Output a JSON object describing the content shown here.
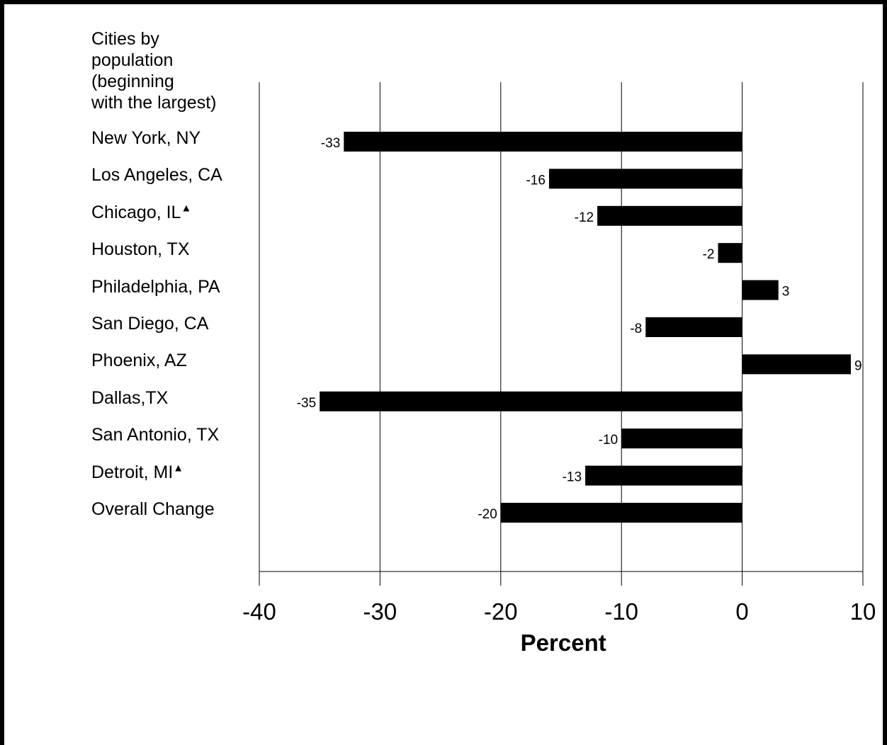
{
  "chart_data": {
    "type": "bar",
    "orientation": "horizontal",
    "y_title": "Cities by\npopulation\n(beginning\nwith the largest)",
    "xlabel": "Percent",
    "xlim": [
      -40,
      10
    ],
    "xticks": [
      "-40",
      "-30",
      "-20",
      "-10",
      "0",
      "10"
    ],
    "grid": true,
    "categories": [
      "New York, NY",
      "Los Angeles, CA",
      "Chicago, IL",
      "Houston, TX",
      "Philadelphia, PA",
      "San Diego, CA",
      "Phoenix, AZ",
      "Dallas,TX",
      "San Antonio, TX",
      "Detroit, MI",
      "Overall Change"
    ],
    "category_markers": [
      "",
      "",
      "▲",
      "",
      "",
      "",
      "",
      "",
      "",
      "▲",
      ""
    ],
    "values": [
      -33,
      -16,
      -12,
      -2,
      3,
      -8,
      9,
      -35,
      -10,
      -13,
      -20
    ],
    "value_labels": [
      "-33",
      "-16",
      "-12",
      "-2",
      "3",
      "-8",
      "9",
      "-35",
      "-10",
      "-13",
      "-20"
    ],
    "colors": {
      "bar": "#000000",
      "grid": "#000000",
      "frame": "#000000"
    }
  }
}
